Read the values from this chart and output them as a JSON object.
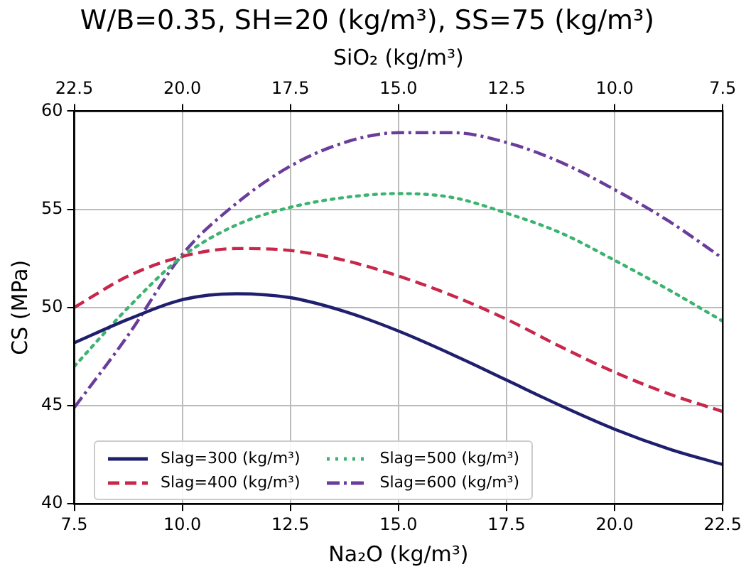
{
  "chart_data": {
    "type": "line",
    "title": "W/B=0.35, SH=20 (kg/m³), SS=75 (kg/m³)",
    "xlabel": "Na₂O (kg/m³)",
    "ylabel": "CS (MPa)",
    "x2label": "SiO₂ (kg/m³)",
    "x": [
      7.5,
      8.75,
      10,
      11.25,
      12.5,
      13.75,
      15,
      16.25,
      17.5,
      18.75,
      20,
      21.25,
      22.5
    ],
    "series": [
      {
        "name": "Slag=300 (kg/m³)",
        "color": "#1f1f6e",
        "line_style": "solid",
        "values": [
          48.2,
          49.4,
          50.4,
          50.7,
          50.5,
          49.8,
          48.8,
          47.6,
          46.3,
          45.0,
          43.8,
          42.8,
          42.0
        ]
      },
      {
        "name": "Slag=400 (kg/m³)",
        "color": "#c8264a",
        "line_style": "dashed",
        "values": [
          50.0,
          51.6,
          52.6,
          53.0,
          52.9,
          52.4,
          51.6,
          50.6,
          49.4,
          48.0,
          46.7,
          45.6,
          44.7
        ]
      },
      {
        "name": "Slag=500 (kg/m³)",
        "color": "#3cb371",
        "line_style": "dotted",
        "values": [
          47.0,
          50.0,
          52.6,
          54.2,
          55.1,
          55.6,
          55.8,
          55.6,
          54.8,
          53.8,
          52.4,
          50.9,
          49.3
        ]
      },
      {
        "name": "Slag=600 (kg/m³)",
        "color": "#6a3d9a",
        "line_style": "dashdot",
        "values": [
          44.9,
          48.6,
          52.7,
          55.3,
          57.2,
          58.4,
          58.9,
          58.9,
          58.4,
          57.4,
          56.0,
          54.4,
          52.5
        ]
      }
    ],
    "xlim": [
      7.5,
      22.5
    ],
    "xticks": [
      {
        "value": 7.5,
        "label": "7.5"
      },
      {
        "value": 10,
        "label": "10.0"
      },
      {
        "value": 12.5,
        "label": "12.5"
      },
      {
        "value": 15,
        "label": "15.0"
      },
      {
        "value": 17.5,
        "label": "17.5"
      },
      {
        "value": 20,
        "label": "20.0"
      },
      {
        "value": 22.5,
        "label": "22.5"
      }
    ],
    "x2lim": [
      22.5,
      7.5
    ],
    "x2ticks": [
      {
        "value": 22.5,
        "label": "22.5"
      },
      {
        "value": 20,
        "label": "20.0"
      },
      {
        "value": 17.5,
        "label": "17.5"
      },
      {
        "value": 15,
        "label": "15.0"
      },
      {
        "value": 12.5,
        "label": "12.5"
      },
      {
        "value": 10,
        "label": "10.0"
      },
      {
        "value": 7.5,
        "label": "7.5"
      }
    ],
    "ylim": [
      40,
      60
    ],
    "yticks": [
      40,
      45,
      50,
      55,
      60
    ],
    "grid": true,
    "legend": "bottom left",
    "marker": "none"
  }
}
